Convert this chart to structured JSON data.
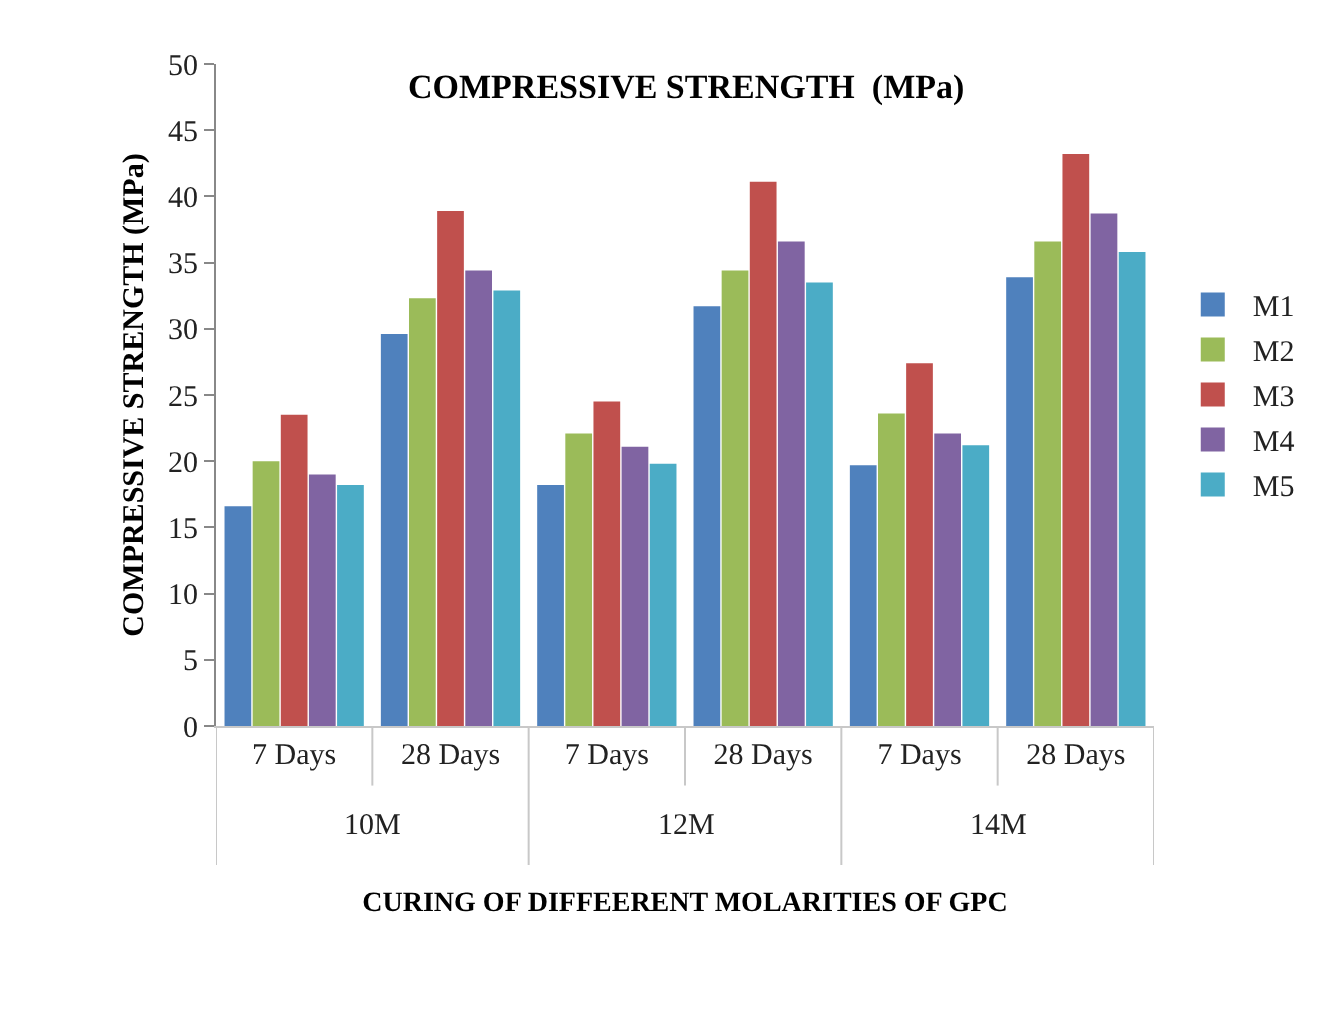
{
  "chart_data": {
    "type": "bar",
    "title": "COMPRESSIVE STRENGTH  (MPa)",
    "xlabel": "CURING OF DIFFEERENT MOLARITIES OF GPC",
    "ylabel": "COMPRESSIVE STRENGTH (MPa)",
    "categories": [
      "7 Days",
      "28 Days",
      "7 Days",
      "28 Days",
      "7 Days",
      "28 Days"
    ],
    "annotations": [
      "10M",
      "12M",
      "14M"
    ],
    "series": [
      {
        "name": "M1",
        "color": "#4f81bd",
        "values": [
          16.6,
          29.6,
          18.2,
          31.7,
          19.7,
          33.9
        ]
      },
      {
        "name": "M2",
        "color": "#9bbb59",
        "values": [
          20,
          32.3,
          22.1,
          34.4,
          23.6,
          36.6
        ]
      },
      {
        "name": "M3",
        "color": "#c0504d",
        "values": [
          23.5,
          38.9,
          24.5,
          41.1,
          27.4,
          43.2
        ]
      },
      {
        "name": "M4",
        "color": "#8064a2",
        "values": [
          19,
          34.4,
          21.1,
          36.6,
          22.1,
          38.7
        ]
      },
      {
        "name": "M5",
        "color": "#4bacc6",
        "values": [
          18.2,
          32.9,
          19.8,
          33.5,
          21.2,
          35.8
        ]
      }
    ],
    "ylim": [
      0,
      50
    ],
    "yticks": [
      0,
      5,
      10,
      15,
      20,
      25,
      30,
      35,
      40,
      45,
      50
    ],
    "grid": false,
    "legend": "right"
  }
}
